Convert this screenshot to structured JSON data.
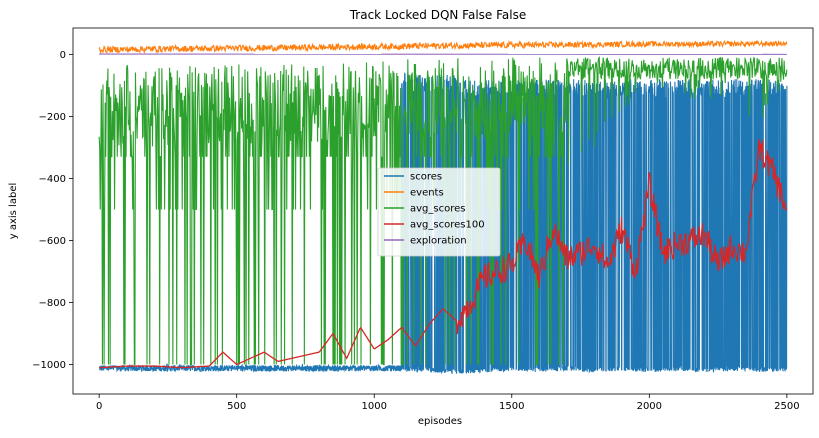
{
  "chart_data": {
    "type": "line",
    "title": "Track Locked DQN False False",
    "xlabel": "episodes",
    "ylabel": "y axis label",
    "xlim": [
      -95,
      2595
    ],
    "ylim": [
      -1095,
      85
    ],
    "xticks": [
      0,
      500,
      1000,
      1500,
      2000,
      2500
    ],
    "yticks": [
      0,
      -200,
      -400,
      -600,
      -800,
      -1000
    ],
    "grid": false,
    "legend_position": "center",
    "series": [
      {
        "name": "scores",
        "color": "#1f77b4",
        "style": "noisy band; mostly near -1010 for episodes 0-1100, then rapidly oscillating between about -1020 and -80 from ~1100 to 2500",
        "x": [
          0,
          100,
          200,
          300,
          400,
          500,
          600,
          700,
          800,
          900,
          1000,
          1100,
          1200,
          1300,
          1400,
          1500,
          1600,
          1700,
          1800,
          1900,
          2000,
          2100,
          2200,
          2300,
          2400,
          2500
        ],
        "y_min": [
          -1020,
          -1030,
          -1020,
          -1020,
          -1025,
          -1020,
          -1025,
          -1020,
          -1025,
          -1020,
          -1025,
          -1020,
          -1025,
          -1030,
          -1025,
          -1020,
          -1025,
          -1020,
          -1025,
          -1020,
          -1025,
          -1020,
          -1025,
          -1020,
          -1025,
          -1020
        ],
        "y_max": [
          -1000,
          -995,
          -1000,
          -995,
          -1000,
          -995,
          -1000,
          -995,
          -1000,
          -995,
          -1000,
          -60,
          -60,
          -60,
          -80,
          -80,
          -80,
          -80,
          -80,
          -80,
          -80,
          -80,
          -80,
          -80,
          -80,
          -80
        ]
      },
      {
        "name": "events",
        "color": "#ff7f0e",
        "style": "noisy band just above zero",
        "x": [
          0,
          250,
          500,
          750,
          1000,
          1250,
          1500,
          1750,
          2000,
          2250,
          2500
        ],
        "y_min": [
          5,
          8,
          10,
          12,
          15,
          18,
          20,
          22,
          25,
          25,
          28
        ],
        "y_max": [
          25,
          28,
          30,
          32,
          35,
          38,
          40,
          40,
          42,
          42,
          42
        ]
      },
      {
        "name": "avg_scores",
        "color": "#2ca02c",
        "style": "noisy, between about -80 and -500 with frequent drops to -1000 up to ~1700, then mostly -10 to -80",
        "x": [
          0,
          100,
          200,
          300,
          400,
          500,
          600,
          700,
          800,
          900,
          1000,
          1100,
          1200,
          1300,
          1400,
          1500,
          1600,
          1700,
          1800,
          1900,
          2000,
          2100,
          2200,
          2300,
          2400,
          2500
        ],
        "y_min": [
          -1000,
          -1000,
          -1000,
          -1000,
          -1000,
          -1000,
          -1000,
          -1000,
          -1000,
          -1000,
          -1000,
          -1000,
          -1000,
          -1000,
          -1000,
          -1000,
          -1000,
          -400,
          -300,
          -200,
          -150,
          -150,
          -150,
          -150,
          -250,
          -100
        ],
        "y_max": [
          -50,
          -30,
          -40,
          -30,
          -40,
          -30,
          -30,
          -30,
          -30,
          -20,
          -20,
          -15,
          -15,
          -10,
          -10,
          -10,
          -10,
          -10,
          -10,
          -10,
          -10,
          -10,
          -10,
          -10,
          -10,
          -10
        ]
      },
      {
        "name": "avg_scores100",
        "color": "#d62728",
        "style": "step-like line",
        "x": [
          0,
          100,
          200,
          300,
          400,
          450,
          500,
          550,
          600,
          650,
          700,
          750,
          800,
          850,
          900,
          950,
          1000,
          1050,
          1100,
          1150,
          1200,
          1250,
          1300,
          1350,
          1400,
          1450,
          1500,
          1550,
          1600,
          1650,
          1700,
          1750,
          1800,
          1850,
          1900,
          1950,
          2000,
          2050,
          2100,
          2150,
          2200,
          2250,
          2300,
          2350,
          2400,
          2450,
          2500
        ],
        "y": [
          -1010,
          -1005,
          -1005,
          -1010,
          -1005,
          -960,
          -1000,
          -980,
          -960,
          -990,
          -980,
          -970,
          -960,
          -900,
          -980,
          -880,
          -950,
          -920,
          -880,
          -940,
          -870,
          -820,
          -860,
          -800,
          -720,
          -700,
          -680,
          -600,
          -720,
          -560,
          -660,
          -640,
          -610,
          -680,
          -560,
          -700,
          -420,
          -640,
          -610,
          -600,
          -580,
          -680,
          -620,
          -640,
          -300,
          -380,
          -500
        ]
      },
      {
        "name": "exploration",
        "color": "#9467bd",
        "style": "flat line near zero, hidden behind events",
        "x": [
          0,
          2500
        ],
        "y": [
          1,
          0
        ]
      }
    ]
  }
}
